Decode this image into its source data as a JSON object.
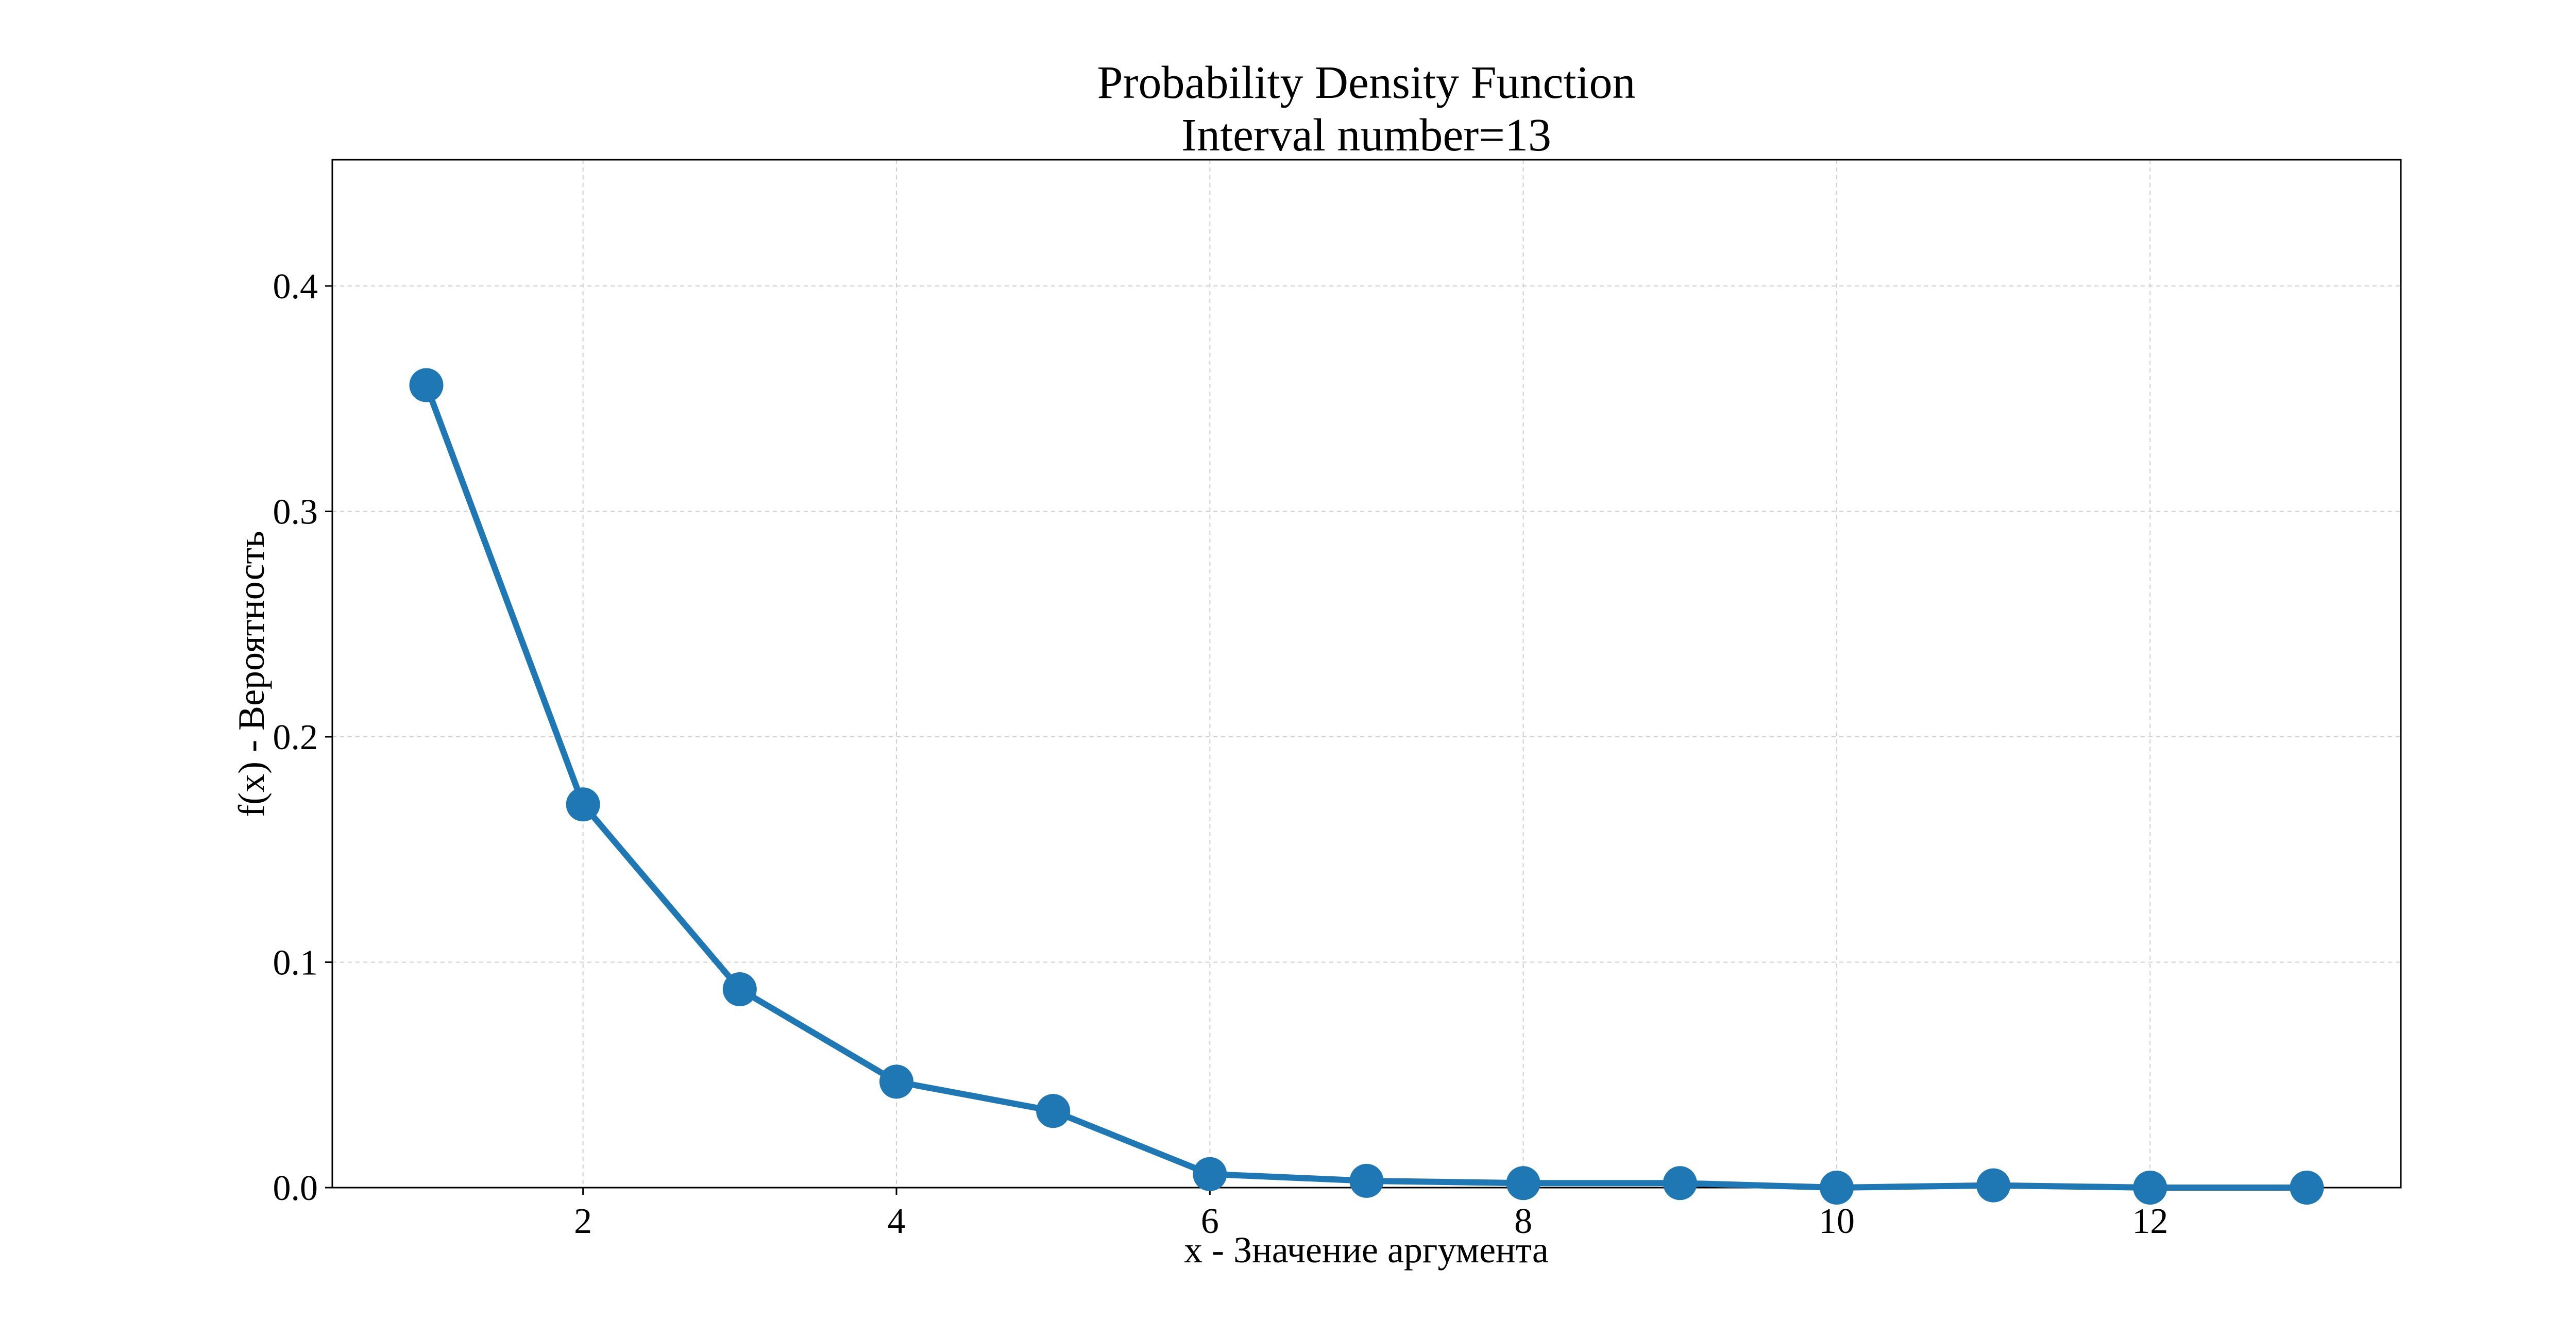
{
  "chart_data": {
    "type": "line",
    "title": "Probability Density Function",
    "subtitle": "Interval number=13",
    "xlabel": "x - Значение аргумента",
    "ylabel": "f(x) - Вероятность",
    "x": [
      1,
      2,
      3,
      4,
      5,
      6,
      7,
      8,
      9,
      10,
      11,
      12,
      13
    ],
    "series": [
      {
        "values": [
          0.356,
          0.17,
          0.088,
          0.047,
          0.034,
          0.006,
          0.003,
          0.002,
          0.002,
          0.0,
          0.001,
          0.0,
          0.0
        ]
      }
    ],
    "xlim": [
      0.4,
      13.6
    ],
    "ylim": [
      0.0,
      0.456
    ],
    "xticks": [
      2,
      4,
      6,
      8,
      10,
      12
    ],
    "xtick_labels": [
      "2",
      "4",
      "6",
      "8",
      "10",
      "12"
    ],
    "yticks": [
      0.0,
      0.1,
      0.2,
      0.3,
      0.4
    ],
    "ytick_labels": [
      "0.0",
      "0.1",
      "0.2",
      "0.3",
      "0.4"
    ],
    "grid": true,
    "colors": {
      "line": "#1f77b4",
      "grid": "#d0d0d0",
      "axes": "#000000"
    }
  }
}
